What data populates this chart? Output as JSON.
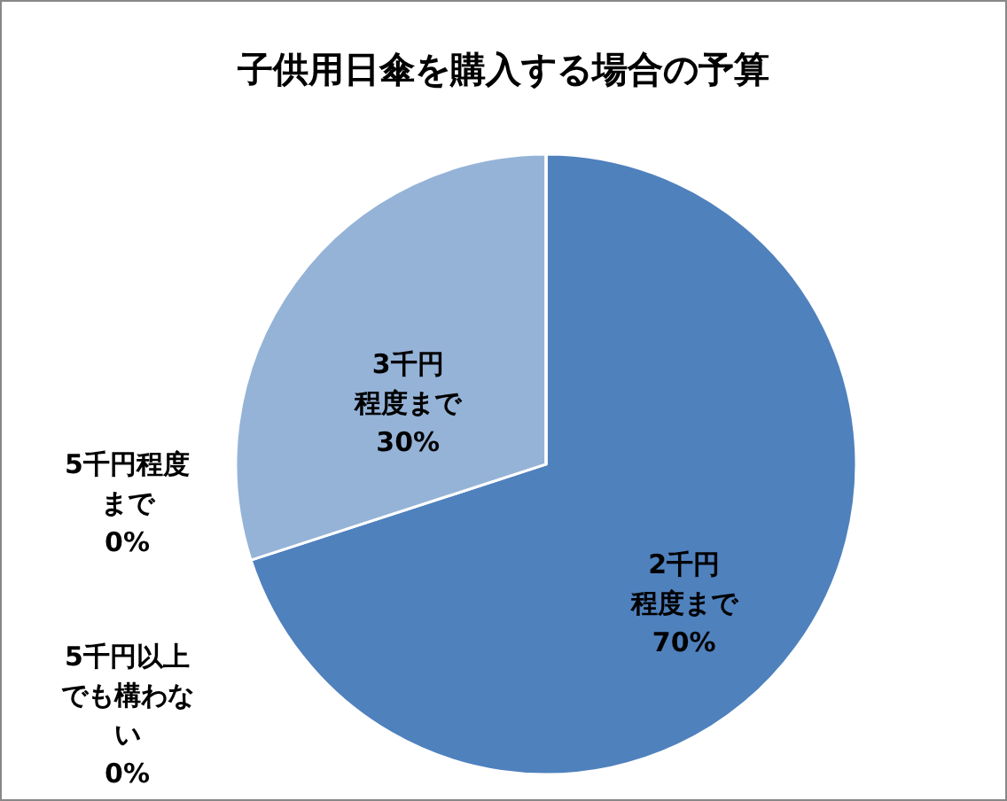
{
  "chart_data": {
    "type": "pie",
    "title": "子供用日傘を購入する場合の予算",
    "categories": [
      "2千円程度まで",
      "3千円程度まで",
      "5千円程度まで",
      "5千円以上でも構わない"
    ],
    "values": [
      70,
      30,
      0,
      0
    ],
    "value_labels": [
      "70%",
      "30%",
      "0%",
      "0%"
    ],
    "colors": [
      "#4f81bd",
      "#95b3d7",
      "#c0504d",
      "#9bbb59"
    ],
    "legend": false
  }
}
